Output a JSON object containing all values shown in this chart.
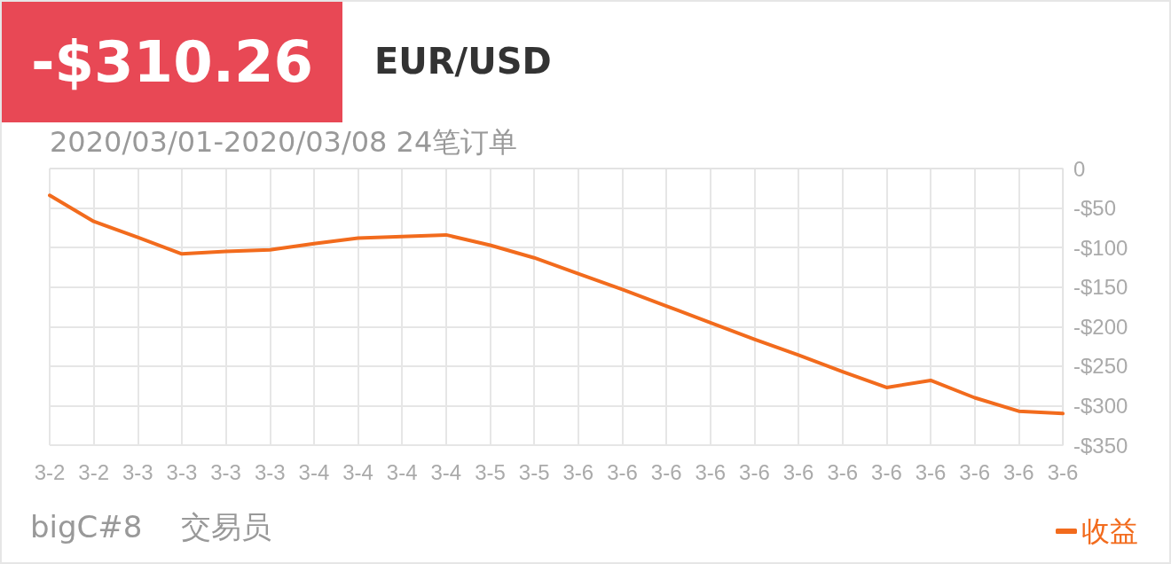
{
  "chart_data": {
    "type": "line",
    "title": "EUR/USD",
    "annotations": [
      "-$310.26",
      "2020/03/01-2020/03/08 24笔订单",
      "bigC#8    交易员"
    ],
    "categories": [
      "3-2",
      "3-2",
      "3-3",
      "3-3",
      "3-3",
      "3-3",
      "3-4",
      "3-4",
      "3-4",
      "3-4",
      "3-5",
      "3-5",
      "3-6",
      "3-6",
      "3-6",
      "3-6",
      "3-6",
      "3-6",
      "3-6",
      "3-6",
      "3-6",
      "3-6",
      "3-6",
      "3-6"
    ],
    "series": [
      {
        "name": "收益",
        "color": "#f26b1d",
        "values": [
          -34,
          -67,
          -87,
          -108,
          -105,
          -103,
          -95,
          -88,
          -86,
          -84,
          -97,
          -113,
          -133,
          -153,
          -174,
          -195,
          -216,
          -236,
          -257,
          -277,
          -268,
          -290,
          -307,
          -310
        ]
      }
    ],
    "ylim": [
      -350,
      0
    ],
    "yticks": [
      0,
      {
        "value": -50,
        "label": "-$50"
      },
      {
        "value": -100,
        "label": "-$100"
      },
      {
        "value": -150,
        "label": "-$150"
      },
      {
        "value": -200,
        "label": "-$200"
      },
      {
        "value": -250,
        "label": "-$250"
      },
      {
        "value": -300,
        "label": "-$300"
      },
      {
        "value": -350,
        "label": "-$350"
      }
    ],
    "grid": true,
    "legend": "bottom right",
    "marker": "none",
    "line_style": "solid"
  }
}
